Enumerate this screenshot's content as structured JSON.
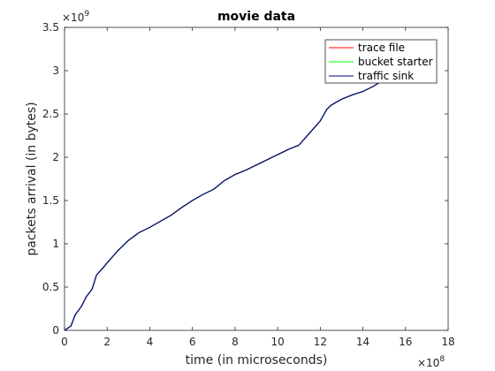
{
  "chart_data": {
    "type": "line",
    "title": "movie data",
    "xlabel": "time (in microseconds)",
    "ylabel": "packets arrival (in bytes)",
    "x_multiplier_base": "×10",
    "x_multiplier_exp": "8",
    "y_multiplier_base": "×10",
    "y_multiplier_exp": "9",
    "xlim": [
      0,
      18
    ],
    "ylim": [
      0,
      3.5
    ],
    "xticks": [
      0,
      2,
      4,
      6,
      8,
      10,
      12,
      14,
      16,
      18
    ],
    "yticks": [
      0,
      0.5,
      1,
      1.5,
      2,
      2.5,
      3,
      3.5
    ],
    "xtick_labels": [
      "0",
      "2",
      "4",
      "6",
      "8",
      "10",
      "12",
      "14",
      "16",
      "18"
    ],
    "ytick_labels": [
      "0",
      "0.5",
      "1",
      "1.5",
      "2",
      "2.5",
      "3",
      "3.5"
    ],
    "grid": false,
    "legend_position": "top-right",
    "series": [
      {
        "name": "trace file",
        "color": "#ff0000",
        "x": [
          0,
          0.3,
          0.5,
          0.8,
          1.0,
          1.3,
          1.5,
          1.8,
          2.0,
          2.5,
          3.0,
          3.5,
          4.0,
          4.5,
          5.0,
          5.5,
          6.0,
          6.5,
          7.0,
          7.5,
          8.0,
          8.5,
          9.0,
          9.5,
          10.0,
          10.5,
          11.0,
          11.5,
          12.0,
          12.3,
          12.5,
          13.0,
          13.5,
          14.0,
          14.5,
          15.0
        ],
        "y": [
          0,
          0.05,
          0.18,
          0.28,
          0.38,
          0.48,
          0.64,
          0.72,
          0.78,
          0.92,
          1.04,
          1.13,
          1.19,
          1.26,
          1.33,
          1.42,
          1.5,
          1.57,
          1.63,
          1.73,
          1.8,
          1.85,
          1.91,
          1.97,
          2.03,
          2.09,
          2.14,
          2.28,
          2.42,
          2.55,
          2.6,
          2.67,
          2.72,
          2.76,
          2.82,
          2.9
        ]
      },
      {
        "name": "bucket starter",
        "color": "#00ff00",
        "x": [
          0,
          0.3,
          0.5,
          0.8,
          1.0,
          1.3,
          1.5,
          1.8,
          2.0,
          2.5,
          3.0,
          3.5,
          4.0,
          4.5,
          5.0,
          5.5,
          6.0,
          6.5,
          7.0,
          7.5,
          8.0,
          8.5,
          9.0,
          9.5,
          10.0,
          10.5,
          11.0,
          11.5,
          12.0,
          12.3,
          12.5,
          13.0,
          13.5,
          14.0,
          14.5,
          15.0
        ],
        "y": [
          0,
          0.05,
          0.18,
          0.28,
          0.38,
          0.48,
          0.64,
          0.72,
          0.78,
          0.92,
          1.04,
          1.13,
          1.19,
          1.26,
          1.33,
          1.42,
          1.5,
          1.57,
          1.63,
          1.73,
          1.8,
          1.85,
          1.91,
          1.97,
          2.03,
          2.09,
          2.14,
          2.28,
          2.42,
          2.55,
          2.6,
          2.67,
          2.72,
          2.76,
          2.82,
          2.9
        ]
      },
      {
        "name": "traffic sink",
        "color": "#000080",
        "x": [
          0,
          0.3,
          0.5,
          0.8,
          1.0,
          1.3,
          1.5,
          1.8,
          2.0,
          2.5,
          3.0,
          3.5,
          4.0,
          4.5,
          5.0,
          5.5,
          6.0,
          6.5,
          7.0,
          7.5,
          8.0,
          8.5,
          9.0,
          9.5,
          10.0,
          10.5,
          11.0,
          11.5,
          12.0,
          12.3,
          12.5,
          13.0,
          13.5,
          14.0,
          14.5,
          15.0
        ],
        "y": [
          0,
          0.05,
          0.18,
          0.28,
          0.38,
          0.48,
          0.64,
          0.72,
          0.78,
          0.92,
          1.04,
          1.13,
          1.19,
          1.26,
          1.33,
          1.42,
          1.5,
          1.57,
          1.63,
          1.73,
          1.8,
          1.85,
          1.91,
          1.97,
          2.03,
          2.09,
          2.14,
          2.28,
          2.42,
          2.55,
          2.6,
          2.67,
          2.72,
          2.76,
          2.82,
          2.9
        ]
      }
    ]
  }
}
